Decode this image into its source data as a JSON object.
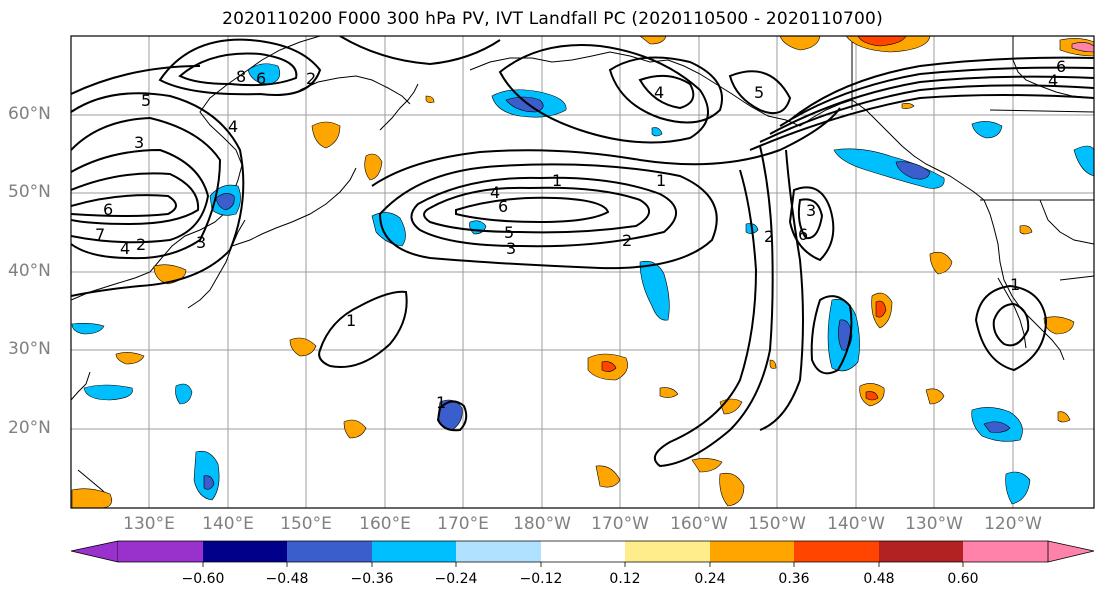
{
  "title": "2020110200 F000 300 hPa PV, IVT Landfall PC (2020110500 - 2020110700)",
  "lat_labels": [
    "60°N",
    "50°N",
    "40°N",
    "30°N",
    "20°N"
  ],
  "lon_labels": [
    "130°E",
    "140°E",
    "150°E",
    "160°E",
    "170°E",
    "180°W",
    "170°W",
    "160°W",
    "150°W",
    "140°W",
    "130°W",
    "120°W"
  ],
  "colorbar": {
    "ticks": [
      "−0.60",
      "−0.48",
      "−0.36",
      "−0.24",
      "−0.12",
      "0.12",
      "0.24",
      "0.36",
      "0.48",
      "0.60"
    ],
    "colors": [
      "#9932cc",
      "#00008b",
      "#3a5fcd",
      "#00bfff",
      "#b0e2ff",
      "#ffffff",
      "#ffec8b",
      "#ffa500",
      "#ff4500",
      "#b22222",
      "#ff82ab"
    ]
  },
  "contour_labels": [
    "5",
    "3",
    "6",
    "7",
    "4",
    "2",
    "3",
    "8",
    "6",
    "4",
    "2",
    "4",
    "6",
    "5",
    "3",
    "2",
    "1",
    "1",
    "2",
    "3",
    "6",
    "4",
    "5",
    "6",
    "4",
    "1",
    "1",
    "1"
  ],
  "colors": {
    "positive": "#ffa500",
    "strong_positive": "#ff4500",
    "negative": "#00bfff",
    "strong_negative": "#3a5fcd",
    "contour": "#000000",
    "grid": "#9c9c9c"
  }
}
